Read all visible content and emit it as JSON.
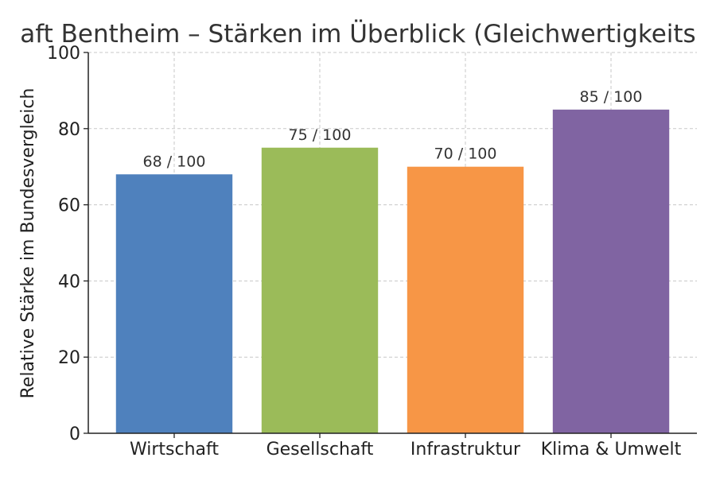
{
  "chart_data": {
    "type": "bar",
    "title": "aft Bentheim – Stärken im Überblick (Gleichwertigkeits",
    "xlabel": "",
    "ylabel": "Relative Stärke im Bundesvergleich",
    "categories": [
      "Wirtschaft",
      "Gesellschaft",
      "Infrastruktur",
      "Klima & Umwelt"
    ],
    "values": [
      68,
      75,
      70,
      85
    ],
    "data_labels": [
      "68 / 100",
      "75 / 100",
      "70 / 100",
      "85 / 100"
    ],
    "colors": [
      "#4F81BD",
      "#9BBB59",
      "#F79646",
      "#8064A2"
    ],
    "ylim": [
      0,
      100
    ],
    "yticks": [
      "0",
      "20",
      "40",
      "60",
      "80",
      "100"
    ],
    "grid": true
  }
}
